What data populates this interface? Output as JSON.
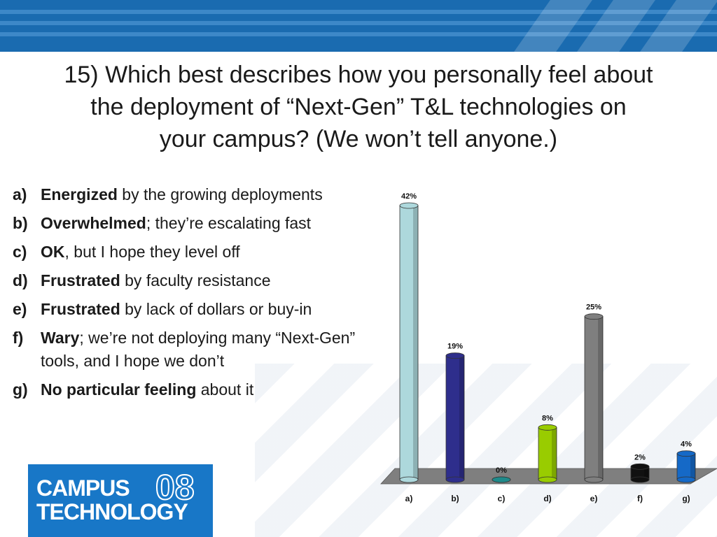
{
  "question": {
    "line1": "15) Which best describes how you personally feel about",
    "line2": "the deployment of “Next-Gen” T&L technologies on",
    "line3": "your campus? (We won’t tell anyone.)"
  },
  "options": [
    {
      "marker": "a)",
      "bold": "Energized",
      "rest": " by the growing deployments"
    },
    {
      "marker": "b)",
      "bold": "Overwhelmed",
      "rest": "; they’re escalating fast"
    },
    {
      "marker": "c)",
      "bold": "OK",
      "rest": ", but I hope they level off"
    },
    {
      "marker": "d)",
      "bold": "Frustrated",
      "rest": " by faculty resistance"
    },
    {
      "marker": "e)",
      "bold": "Frustrated",
      "rest": " by lack of dollars or buy-in"
    },
    {
      "marker": "f)",
      "bold": "Wary",
      "rest": "; we’re not deploying many “Next-Gen” tools, and I hope we don’t"
    },
    {
      "marker": "g)",
      "bold": "No particular feeling",
      "rest": " about it"
    }
  ],
  "logo": {
    "line1": "CAMPUS",
    "line2": "TECHNOLOGY",
    "year": "08"
  },
  "colors": {
    "header_blue": "#1a6bb0",
    "logo_blue": "#1877c7"
  },
  "chart_data": {
    "type": "bar",
    "categories": [
      "a)",
      "b)",
      "c)",
      "d)",
      "e)",
      "f)",
      "g)"
    ],
    "values": [
      42,
      19,
      0,
      8,
      25,
      2,
      4
    ],
    "labels": [
      "42%",
      "19%",
      "0%",
      "8%",
      "25%",
      "2%",
      "4%"
    ],
    "colors": [
      "#add8dc",
      "#2e2e8c",
      "#1f8a8a",
      "#99cc00",
      "#7f7f7f",
      "#111111",
      "#1569c7"
    ],
    "floor_color": "#7f7f7f",
    "style": "3d-cylinder",
    "ylim": [
      0,
      42
    ],
    "grid": false
  }
}
